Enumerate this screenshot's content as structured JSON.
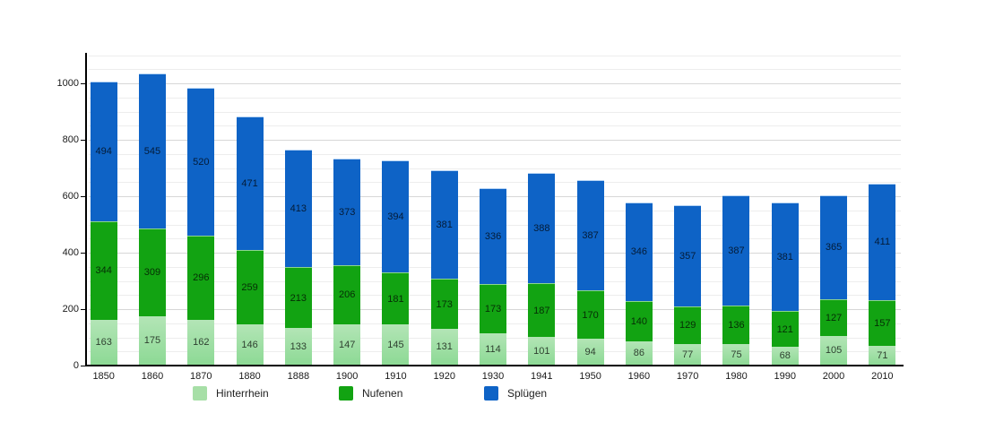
{
  "chart_data": {
    "type": "bar",
    "stacked": true,
    "title": "",
    "xlabel": "",
    "ylabel": "",
    "grid": true,
    "legend_position": "bottom",
    "categories": [
      "1850",
      "1860",
      "1870",
      "1880",
      "1888",
      "1900",
      "1910",
      "1920",
      "1930",
      "1941",
      "1950",
      "1960",
      "1970",
      "1980",
      "1990",
      "2000",
      "2010"
    ],
    "series": [
      {
        "name": "Hinterrhein",
        "color": "#a7dfa7",
        "values": [
          163,
          175,
          162,
          146,
          133,
          147,
          145,
          131,
          114,
          101,
          94,
          86,
          77,
          75,
          68,
          105,
          71
        ]
      },
      {
        "name": "Nufenen",
        "color": "#12a312",
        "values": [
          344,
          309,
          296,
          259,
          213,
          206,
          181,
          173,
          173,
          187,
          170,
          140,
          129,
          136,
          121,
          127,
          157
        ]
      },
      {
        "name": "Splügen",
        "color": "#0e63c6",
        "values": [
          494,
          545,
          520,
          471,
          413,
          373,
          394,
          381,
          336,
          388,
          387,
          346,
          357,
          387,
          381,
          365,
          411
        ]
      }
    ],
    "y_axis": {
      "ticks": [
        0,
        200,
        400,
        600,
        800,
        1000
      ],
      "minor_step": 50,
      "major_step": 200,
      "max": 1100
    }
  },
  "legend": {
    "items": [
      {
        "label": "Hinterrhein",
        "color": "#a7dfa7"
      },
      {
        "label": "Nufenen",
        "color": "#12a312"
      },
      {
        "label": "Splügen",
        "color": "#0e63c6"
      }
    ]
  }
}
